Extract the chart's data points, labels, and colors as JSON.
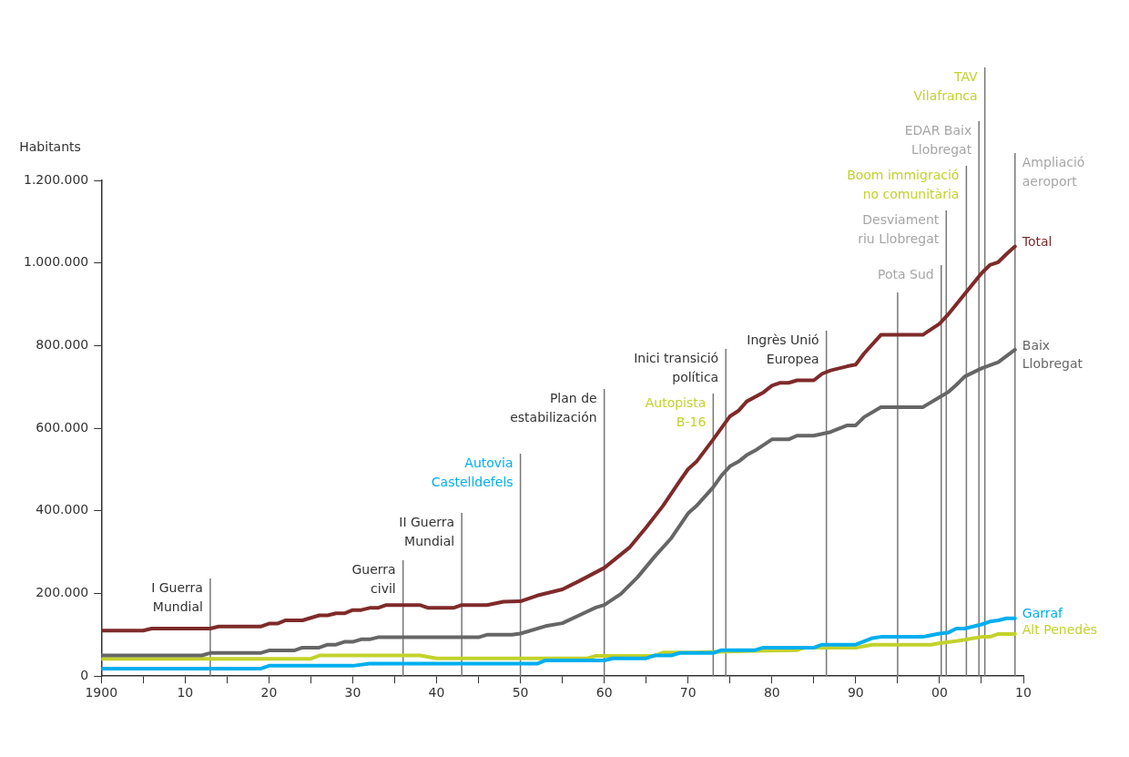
{
  "chart_data": {
    "type": "line",
    "ylabel": "Habitants",
    "xlim": [
      1900,
      2010
    ],
    "xticks": [
      {
        "value": 1900,
        "label": "1900"
      },
      {
        "value": 1905,
        "label": null
      },
      {
        "value": 1910,
        "label": "10"
      },
      {
        "value": 1915,
        "label": null
      },
      {
        "value": 1920,
        "label": "20"
      },
      {
        "value": 1925,
        "label": null
      },
      {
        "value": 1930,
        "label": "30"
      },
      {
        "value": 1935,
        "label": null
      },
      {
        "value": 1940,
        "label": "40"
      },
      {
        "value": 1945,
        "label": null
      },
      {
        "value": 1950,
        "label": "50"
      },
      {
        "value": 1955,
        "label": null
      },
      {
        "value": 1960,
        "label": "60"
      },
      {
        "value": 1965,
        "label": null
      },
      {
        "value": 1970,
        "label": "70"
      },
      {
        "value": 1975,
        "label": null
      },
      {
        "value": 1980,
        "label": "80"
      },
      {
        "value": 1985,
        "label": null
      },
      {
        "value": 1990,
        "label": "90"
      },
      {
        "value": 1995,
        "label": null
      },
      {
        "value": 2000,
        "label": "00"
      },
      {
        "value": 2005,
        "label": null
      },
      {
        "value": 2010,
        "label": "10"
      }
    ],
    "ylim": [
      0,
      1200000
    ],
    "yticks": [
      0,
      {
        "value": 200000,
        "label": "200.000"
      },
      {
        "value": 400000,
        "label": "400.000"
      },
      {
        "value": 600000,
        "label": "600.000"
      },
      {
        "value": 800000,
        "label": "800.000"
      },
      {
        "value": 1000000,
        "label": "1.000.000"
      },
      {
        "value": 1200000,
        "label": "1.200.000"
      }
    ],
    "series": [
      {
        "name": "Total",
        "color": "#7f2a2a",
        "x": [
          1900,
          1905,
          1906,
          1913,
          1914,
          1919,
          1920,
          1921,
          1922,
          1924,
          1926,
          1927,
          1928,
          1929,
          1930,
          1931,
          1932,
          1933,
          1934,
          1938,
          1939,
          1942,
          1943,
          1946,
          1948,
          1950,
          1952,
          1955,
          1957,
          1960,
          1963,
          1965,
          1967,
          1969,
          1970,
          1971,
          1973,
          1975,
          1976,
          1977,
          1979,
          1980,
          1981,
          1982,
          1983,
          1985,
          1986,
          1987,
          1989,
          1990,
          1991,
          1993,
          1998,
          2000,
          2001,
          2003,
          2005,
          2006,
          2007,
          2008,
          2009
        ],
        "values": [
          110000,
          110000,
          115000,
          115000,
          120000,
          120000,
          127000,
          127000,
          135000,
          135000,
          147000,
          147000,
          152000,
          152000,
          160000,
          160000,
          165000,
          165000,
          172000,
          172000,
          165000,
          165000,
          172000,
          172000,
          180000,
          181000,
          195000,
          210000,
          230000,
          262000,
          311000,
          360000,
          412000,
          472000,
          501000,
          519000,
          573000,
          629000,
          642000,
          665000,
          687000,
          703000,
          710000,
          710000,
          716000,
          716000,
          732000,
          740000,
          750000,
          754000,
          781000,
          826000,
          826000,
          853000,
          875000,
          925000,
          975000,
          995000,
          1002000,
          1022000,
          1040000
        ]
      },
      {
        "name": "Baix Llobregat",
        "color": "#666666",
        "x": [
          1900,
          1912,
          1913,
          1919,
          1920,
          1923,
          1924,
          1926,
          1927,
          1928,
          1929,
          1930,
          1931,
          1932,
          1933,
          1945,
          1946,
          1949,
          1950,
          1953,
          1955,
          1957,
          1959,
          1960,
          1962,
          1964,
          1966,
          1968,
          1970,
          1971,
          1973,
          1974,
          1975,
          1976,
          1977,
          1978,
          1980,
          1982,
          1983,
          1985,
          1987,
          1989,
          1990,
          1991,
          1993,
          1998,
          2000,
          2001,
          2002,
          2003,
          2005,
          2007,
          2009
        ],
        "values": [
          50000,
          50000,
          56000,
          56000,
          62000,
          62000,
          69000,
          69000,
          76000,
          76000,
          83000,
          83000,
          89000,
          89000,
          94000,
          94000,
          100000,
          100000,
          103000,
          121000,
          128000,
          147000,
          166000,
          172000,
          199000,
          240000,
          289000,
          334000,
          394000,
          412000,
          457000,
          486000,
          508000,
          519000,
          535000,
          546000,
          573000,
          573000,
          582000,
          582000,
          591000,
          607000,
          607000,
          627000,
          651000,
          651000,
          675000,
          687000,
          705000,
          725000,
          745000,
          760000,
          790000
        ]
      },
      {
        "name": "Garraf",
        "color": "#00aeef",
        "x": [
          1900,
          1919,
          1920,
          1930,
          1932,
          1952,
          1953,
          1960,
          1961,
          1965,
          1966,
          1968,
          1969,
          1973,
          1974,
          1978,
          1979,
          1985,
          1986,
          1990,
          1992,
          1993,
          1998,
          2000,
          2001,
          2002,
          2003,
          2004,
          2005,
          2006,
          2007,
          2008,
          2009
        ],
        "values": [
          18000,
          18000,
          25000,
          25000,
          30000,
          30000,
          38000,
          38000,
          43000,
          43000,
          50000,
          50000,
          56000,
          56000,
          63000,
          63000,
          69000,
          69000,
          76000,
          76000,
          92000,
          95000,
          95000,
          103000,
          105000,
          115000,
          115000,
          120000,
          125000,
          132000,
          135000,
          140000,
          140000
        ]
      },
      {
        "name": "Alt Penedès",
        "color": "#c2d22c",
        "x": [
          1900,
          1925,
          1926,
          1938,
          1940,
          1958,
          1959,
          1966,
          1967,
          1970,
          1978,
          1983,
          1984,
          1990,
          1992,
          1999,
          2000,
          2002,
          2003,
          2005,
          2006,
          2007,
          2009
        ],
        "values": [
          42000,
          42000,
          50000,
          50000,
          43000,
          43000,
          49000,
          49000,
          57000,
          57000,
          61000,
          63000,
          69000,
          69000,
          76000,
          76000,
          80000,
          85000,
          88000,
          95000,
          95000,
          102000,
          102000
        ]
      }
    ],
    "ref_lines": [
      {
        "axis": "x",
        "value": 1913,
        "label": "I Guerra\nMundial",
        "color": "#777777"
      },
      {
        "axis": "x",
        "value": 1936,
        "label": "Guerra\ncivil",
        "color": "#777777"
      },
      {
        "axis": "x",
        "value": 1943,
        "label": "II Guerra\nMundial",
        "color": "#777777"
      },
      {
        "axis": "x",
        "value": 1950,
        "label": "Autovia\nCastelldefels",
        "color": "#777777"
      },
      {
        "axis": "x",
        "value": 1960,
        "label": "Plan de\nestabilización",
        "color": "#777777"
      },
      {
        "axis": "x",
        "value": 1973,
        "label": "Autopista\nB-16",
        "color": "#777777"
      },
      {
        "axis": "x",
        "value": 1974.5,
        "label": "Inici transició\npolítica",
        "color": "#777777"
      },
      {
        "axis": "x",
        "value": 1986.5,
        "label": "Ingrès Unió\nEuropea",
        "color": "#777777"
      },
      {
        "axis": "x",
        "value": 1995,
        "color": "#777777"
      },
      {
        "axis": "x",
        "value": 2000.2,
        "label": "Pota Sud",
        "color": "#777777"
      },
      {
        "axis": "x",
        "value": 2000.8,
        "label": "Desviament\nriu Llobregat",
        "color": "#777777"
      },
      {
        "axis": "x",
        "value": 2003.2,
        "label": "Boom immigració\nno comunitària",
        "color": "#777777"
      },
      {
        "axis": "x",
        "value": 2004.7,
        "label": "EDAR Baix\nLlobregat",
        "color": "#777777"
      },
      {
        "axis": "x",
        "value": 2005.4,
        "label": "TAV\nVilafranca",
        "color": "#777777"
      },
      {
        "axis": "x",
        "value": 2009,
        "label": "Ampliació\naeroport",
        "color": "#777777"
      }
    ]
  }
}
